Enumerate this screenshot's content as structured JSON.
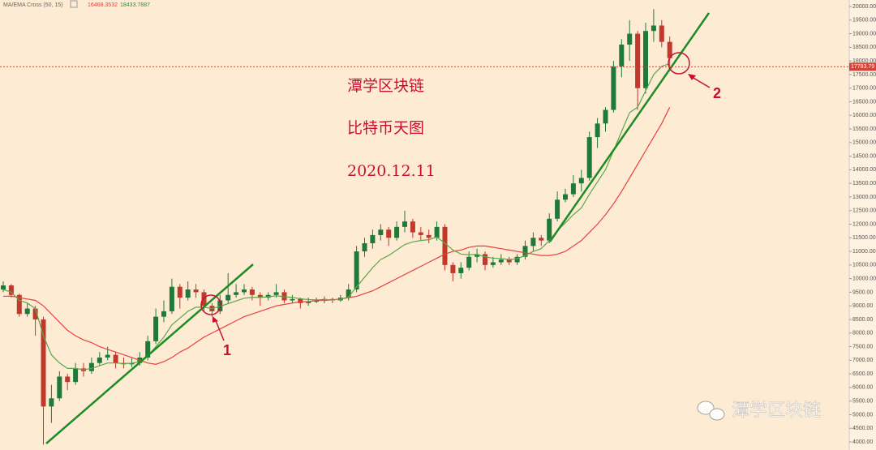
{
  "chart_data": {
    "type": "candlestick",
    "legend": {
      "title": "MA/EMA Cross (50, 15)",
      "values": [
        16468.3532,
        18433.7887
      ]
    },
    "up_color": "#1f7a3a",
    "down_color": "#c0392b",
    "ohlc": [
      [
        9600,
        9900,
        9500,
        9750
      ],
      [
        9750,
        9800,
        9300,
        9400
      ],
      [
        9400,
        9450,
        8600,
        8700
      ],
      [
        8700,
        9100,
        8600,
        8900
      ],
      [
        8900,
        9000,
        7900,
        8500
      ],
      [
        8500,
        8600,
        3900,
        5300
      ],
      [
        5300,
        6100,
        4700,
        5600
      ],
      [
        5600,
        6600,
        5500,
        6400
      ],
      [
        6400,
        6500,
        5900,
        6200
      ],
      [
        6200,
        6900,
        6100,
        6700
      ],
      [
        6700,
        6900,
        6400,
        6600
      ],
      [
        6600,
        7100,
        6500,
        6900
      ],
      [
        6900,
        7300,
        6800,
        7100
      ],
      [
        7100,
        7500,
        7000,
        7200
      ],
      [
        7200,
        7300,
        6700,
        6900
      ],
      [
        6900,
        7100,
        6700,
        6850
      ],
      [
        6850,
        7100,
        6750,
        6900
      ],
      [
        6900,
        7300,
        6800,
        7100
      ],
      [
        7100,
        7900,
        7000,
        7700
      ],
      [
        7700,
        8900,
        7600,
        8600
      ],
      [
        8600,
        9200,
        8400,
        8800
      ],
      [
        8800,
        10000,
        8700,
        9700
      ],
      [
        9700,
        9800,
        8900,
        9300
      ],
      [
        9300,
        9900,
        9200,
        9600
      ],
      [
        9600,
        9800,
        9300,
        9500
      ],
      [
        9500,
        9600,
        8800,
        9000
      ],
      [
        9000,
        9100,
        8600,
        8800
      ],
      [
        8800,
        9400,
        8700,
        9200
      ],
      [
        9200,
        10200,
        9100,
        9400
      ],
      [
        9400,
        9800,
        9300,
        9500
      ],
      [
        9500,
        9800,
        9400,
        9600
      ],
      [
        9600,
        9700,
        9200,
        9400
      ],
      [
        9400,
        9500,
        9000,
        9300
      ],
      [
        9300,
        9500,
        9200,
        9400
      ],
      [
        9400,
        9800,
        9300,
        9500
      ],
      [
        9500,
        9600,
        9100,
        9200
      ],
      [
        9200,
        9400,
        9100,
        9250
      ],
      [
        9250,
        9300,
        8900,
        9100
      ],
      [
        9100,
        9300,
        9000,
        9150
      ],
      [
        9150,
        9300,
        9100,
        9200
      ],
      [
        9200,
        9350,
        9100,
        9250
      ],
      [
        9250,
        9300,
        9100,
        9200
      ],
      [
        9200,
        9400,
        9150,
        9300
      ],
      [
        9300,
        9800,
        9200,
        9600
      ],
      [
        9600,
        11200,
        9500,
        11000
      ],
      [
        11000,
        11500,
        10800,
        11300
      ],
      [
        11300,
        11800,
        11100,
        11600
      ],
      [
        11600,
        12000,
        11400,
        11800
      ],
      [
        11800,
        11900,
        11200,
        11500
      ],
      [
        11500,
        12100,
        11400,
        11900
      ],
      [
        11900,
        12500,
        11700,
        12100
      ],
      [
        12100,
        12200,
        11500,
        11700
      ],
      [
        11700,
        11900,
        11400,
        11600
      ],
      [
        11600,
        11800,
        11300,
        11500
      ],
      [
        11500,
        12100,
        11400,
        11900
      ],
      [
        11900,
        12000,
        10300,
        10500
      ],
      [
        10500,
        10600,
        9900,
        10200
      ],
      [
        10200,
        10600,
        10000,
        10400
      ],
      [
        10400,
        11000,
        10300,
        10800
      ],
      [
        10800,
        11100,
        10600,
        10900
      ],
      [
        10900,
        11000,
        10300,
        10500
      ],
      [
        10500,
        10800,
        10400,
        10600
      ],
      [
        10600,
        10900,
        10500,
        10700
      ],
      [
        10700,
        10800,
        10500,
        10600
      ],
      [
        10600,
        10900,
        10500,
        10800
      ],
      [
        10800,
        11400,
        10700,
        11200
      ],
      [
        11200,
        11700,
        11000,
        11500
      ],
      [
        11500,
        11600,
        11200,
        11400
      ],
      [
        11400,
        12400,
        11300,
        12200
      ],
      [
        12200,
        13200,
        12100,
        12900
      ],
      [
        12900,
        13300,
        12800,
        13100
      ],
      [
        13100,
        13800,
        13000,
        13500
      ],
      [
        13500,
        14000,
        13200,
        13700
      ],
      [
        13700,
        15400,
        13600,
        15200
      ],
      [
        15200,
        15900,
        14800,
        15700
      ],
      [
        15700,
        16300,
        15400,
        16200
      ],
      [
        16200,
        18000,
        16100,
        17800
      ],
      [
        17800,
        18800,
        17400,
        18600
      ],
      [
        18600,
        19500,
        18000,
        19000
      ],
      [
        19000,
        19100,
        16200,
        17000
      ],
      [
        17000,
        19400,
        16800,
        19100
      ],
      [
        19100,
        19900,
        18700,
        19300
      ],
      [
        19300,
        19500,
        18500,
        18700
      ],
      [
        18700,
        18900,
        17700,
        18100
      ]
    ],
    "series": [
      {
        "color": "#e8413c",
        "values": [
          9350,
          9360,
          9300,
          9250,
          9200,
          9000,
          8700,
          8400,
          8100,
          7900,
          7750,
          7650,
          7500,
          7400,
          7300,
          7200,
          7100,
          7000,
          6900,
          6850,
          6950,
          7100,
          7300,
          7450,
          7650,
          7850,
          8000,
          8150,
          8300,
          8450,
          8600,
          8700,
          8800,
          8900,
          9000,
          9050,
          9100,
          9150,
          9150,
          9200,
          9200,
          9220,
          9250,
          9300,
          9350,
          9450,
          9550,
          9700,
          9850,
          10000,
          10150,
          10300,
          10450,
          10600,
          10750,
          10900,
          11000,
          11050,
          11150,
          11200,
          11200,
          11150,
          11100,
          11050,
          11000,
          10950,
          10900,
          10850,
          10850,
          10900,
          11000,
          11200,
          11400,
          11700,
          12000,
          12350,
          12750,
          13200,
          13700,
          14200,
          14700,
          15200,
          15700,
          16300
        ]
      },
      {
        "color": "#5aa84a",
        "values": [
          9600,
          9500,
          9200,
          9100,
          8900,
          7900,
          7200,
          6900,
          6700,
          6700,
          6650,
          6700,
          6800,
          6900,
          6900,
          6880,
          6890,
          6950,
          7150,
          7500,
          7850,
          8300,
          8550,
          8800,
          8950,
          8950,
          8900,
          8980,
          9080,
          9180,
          9280,
          9310,
          9310,
          9330,
          9370,
          9330,
          9310,
          9260,
          9230,
          9220,
          9230,
          9220,
          9240,
          9320,
          9700,
          10050,
          10400,
          10700,
          10850,
          11050,
          11250,
          11350,
          11400,
          11430,
          11530,
          11300,
          11050,
          10900,
          10880,
          10890,
          10800,
          10750,
          10740,
          10700,
          10730,
          10850,
          11000,
          11100,
          11400,
          11750,
          12050,
          12350,
          12600,
          13100,
          13550,
          14000,
          14700,
          15400,
          16100,
          16300,
          16900,
          17500,
          17800,
          17900
        ]
      }
    ],
    "ylim": [
      4000,
      20000
    ],
    "yticks": [
      {
        "value": 4000,
        "label": "4000.00"
      },
      {
        "value": 4500,
        "label": "4500.00"
      },
      {
        "value": 5000,
        "label": "5000.00"
      },
      {
        "value": 5500,
        "label": "5500.00"
      },
      {
        "value": 6000,
        "label": "6000.00"
      },
      {
        "value": 6500,
        "label": "6500.00"
      },
      {
        "value": 7000,
        "label": "7000.00"
      },
      {
        "value": 7500,
        "label": "7500.00"
      },
      {
        "value": 8000,
        "label": "8000.00"
      },
      {
        "value": 8500,
        "label": "8500.00"
      },
      {
        "value": 9000,
        "label": "9000.00"
      },
      {
        "value": 9500,
        "label": "9500.00"
      },
      {
        "value": 10000,
        "label": "10000.00"
      },
      {
        "value": 10500,
        "label": "10500.00"
      },
      {
        "value": 11000,
        "label": "11000.00"
      },
      {
        "value": 11500,
        "label": "11500.00"
      },
      {
        "value": 12000,
        "label": "12000.00"
      },
      {
        "value": 12500,
        "label": "12500.00"
      },
      {
        "value": 13000,
        "label": "13000.00"
      },
      {
        "value": 13500,
        "label": "13500.00"
      },
      {
        "value": 14000,
        "label": "14000.00"
      },
      {
        "value": 14500,
        "label": "14500.00"
      },
      {
        "value": 15000,
        "label": "15000.00"
      },
      {
        "value": 15500,
        "label": "15500.00"
      },
      {
        "value": 16000,
        "label": "16000.00"
      },
      {
        "value": 16500,
        "label": "16500.00"
      },
      {
        "value": 17000,
        "label": "17000.00"
      },
      {
        "value": 17500,
        "label": "17500.00"
      },
      {
        "value": 18000,
        "label": "18000.00"
      },
      {
        "value": 18500,
        "label": "18500.00"
      },
      {
        "value": 19000,
        "label": "19000.00"
      },
      {
        "value": 19500,
        "label": "19500.00"
      },
      {
        "value": 20000,
        "label": "20000.00"
      }
    ],
    "last_price": 17783.79,
    "annotations": [
      "潭学区块链",
      "比特币天图",
      "2020.12.11",
      "1",
      "2"
    ],
    "watermark": "潭学区块链"
  }
}
